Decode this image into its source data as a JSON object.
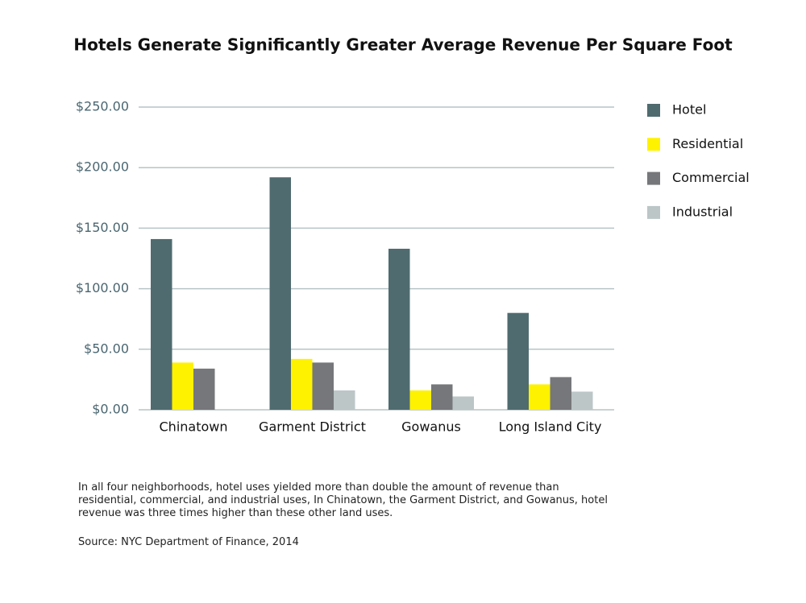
{
  "chart_data": {
    "type": "bar",
    "title": "Hotels Generate Significantly Greater Average Revenue Per Square Foot",
    "categories": [
      "Chinatown",
      "Garment District",
      "Gowanus",
      "Long Island City"
    ],
    "series": [
      {
        "name": "Hotel",
        "color": "#4f6b70",
        "values": [
          141,
          192,
          133,
          80
        ]
      },
      {
        "name": "Residential",
        "color": "#fff200",
        "values": [
          39,
          42,
          16,
          21
        ]
      },
      {
        "name": "Commercial",
        "color": "#76777a",
        "values": [
          34,
          39,
          21,
          27
        ]
      },
      {
        "name": "Industrial",
        "color": "#bcc6c7",
        "values": [
          null,
          16,
          11,
          15
        ]
      }
    ],
    "ylim": [
      0,
      250
    ],
    "yticks": [
      {
        "value": 0,
        "label": "$0.00"
      },
      {
        "value": 50,
        "label": "$50.00"
      },
      {
        "value": 100,
        "label": "$100.00"
      },
      {
        "value": 150,
        "label": "$150.00"
      },
      {
        "value": 200,
        "label": "$200.00"
      },
      {
        "value": 250,
        "label": "$250.00"
      }
    ],
    "grid": true,
    "legend": "right",
    "note": "In all four neighborhoods, hotel uses yielded more than double the amount of revenue than residential, commercial, and industrial uses, In Chinatown, the Garment District, and Gowanus, hotel revenue was three times higher than these other land uses.",
    "source": "Source: NYC Department of Finance, 2014"
  }
}
